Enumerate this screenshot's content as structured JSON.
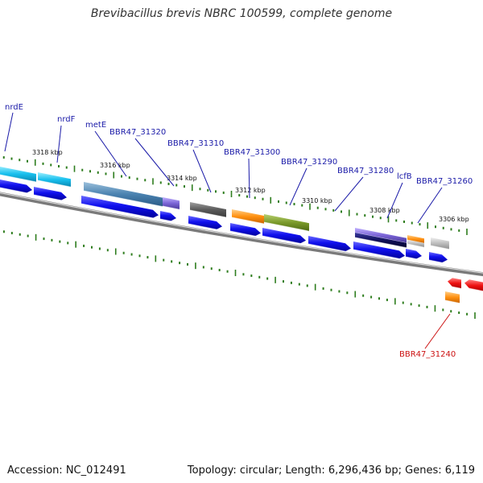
{
  "title": "Brevibacillus brevis NBRC 100599, complete genome",
  "footer": {
    "accession": "Accession: NC_012491",
    "summary": "Topology: circular; Length: 6,296,436 bp; Genes: 6,119"
  },
  "colors": {
    "backbone": "#7a7a7a",
    "cds": "#0000ee",
    "label_blue": "#1a1aa8",
    "label_red": "#cc1111",
    "tick": "#2e7d1e"
  },
  "ruler": [
    {
      "label": "3318 kbp"
    },
    {
      "label": "3316 kbp"
    },
    {
      "label": "3314 kbp"
    },
    {
      "label": "3312 kbp"
    },
    {
      "label": "3310 kbp"
    },
    {
      "label": "3308 kbp"
    },
    {
      "label": "3306 kbp"
    }
  ],
  "gene_labels": [
    {
      "text": "nrdE"
    },
    {
      "text": "nrdF"
    },
    {
      "text": "metE"
    },
    {
      "text": "BBR47_31320"
    },
    {
      "text": "BBR47_31310"
    },
    {
      "text": "BBR47_31300"
    },
    {
      "text": "BBR47_31290"
    },
    {
      "text": "BBR47_31280"
    },
    {
      "text": "lcfB"
    },
    {
      "text": "BBR47_31260"
    },
    {
      "text": "BBR47_31240"
    }
  ]
}
